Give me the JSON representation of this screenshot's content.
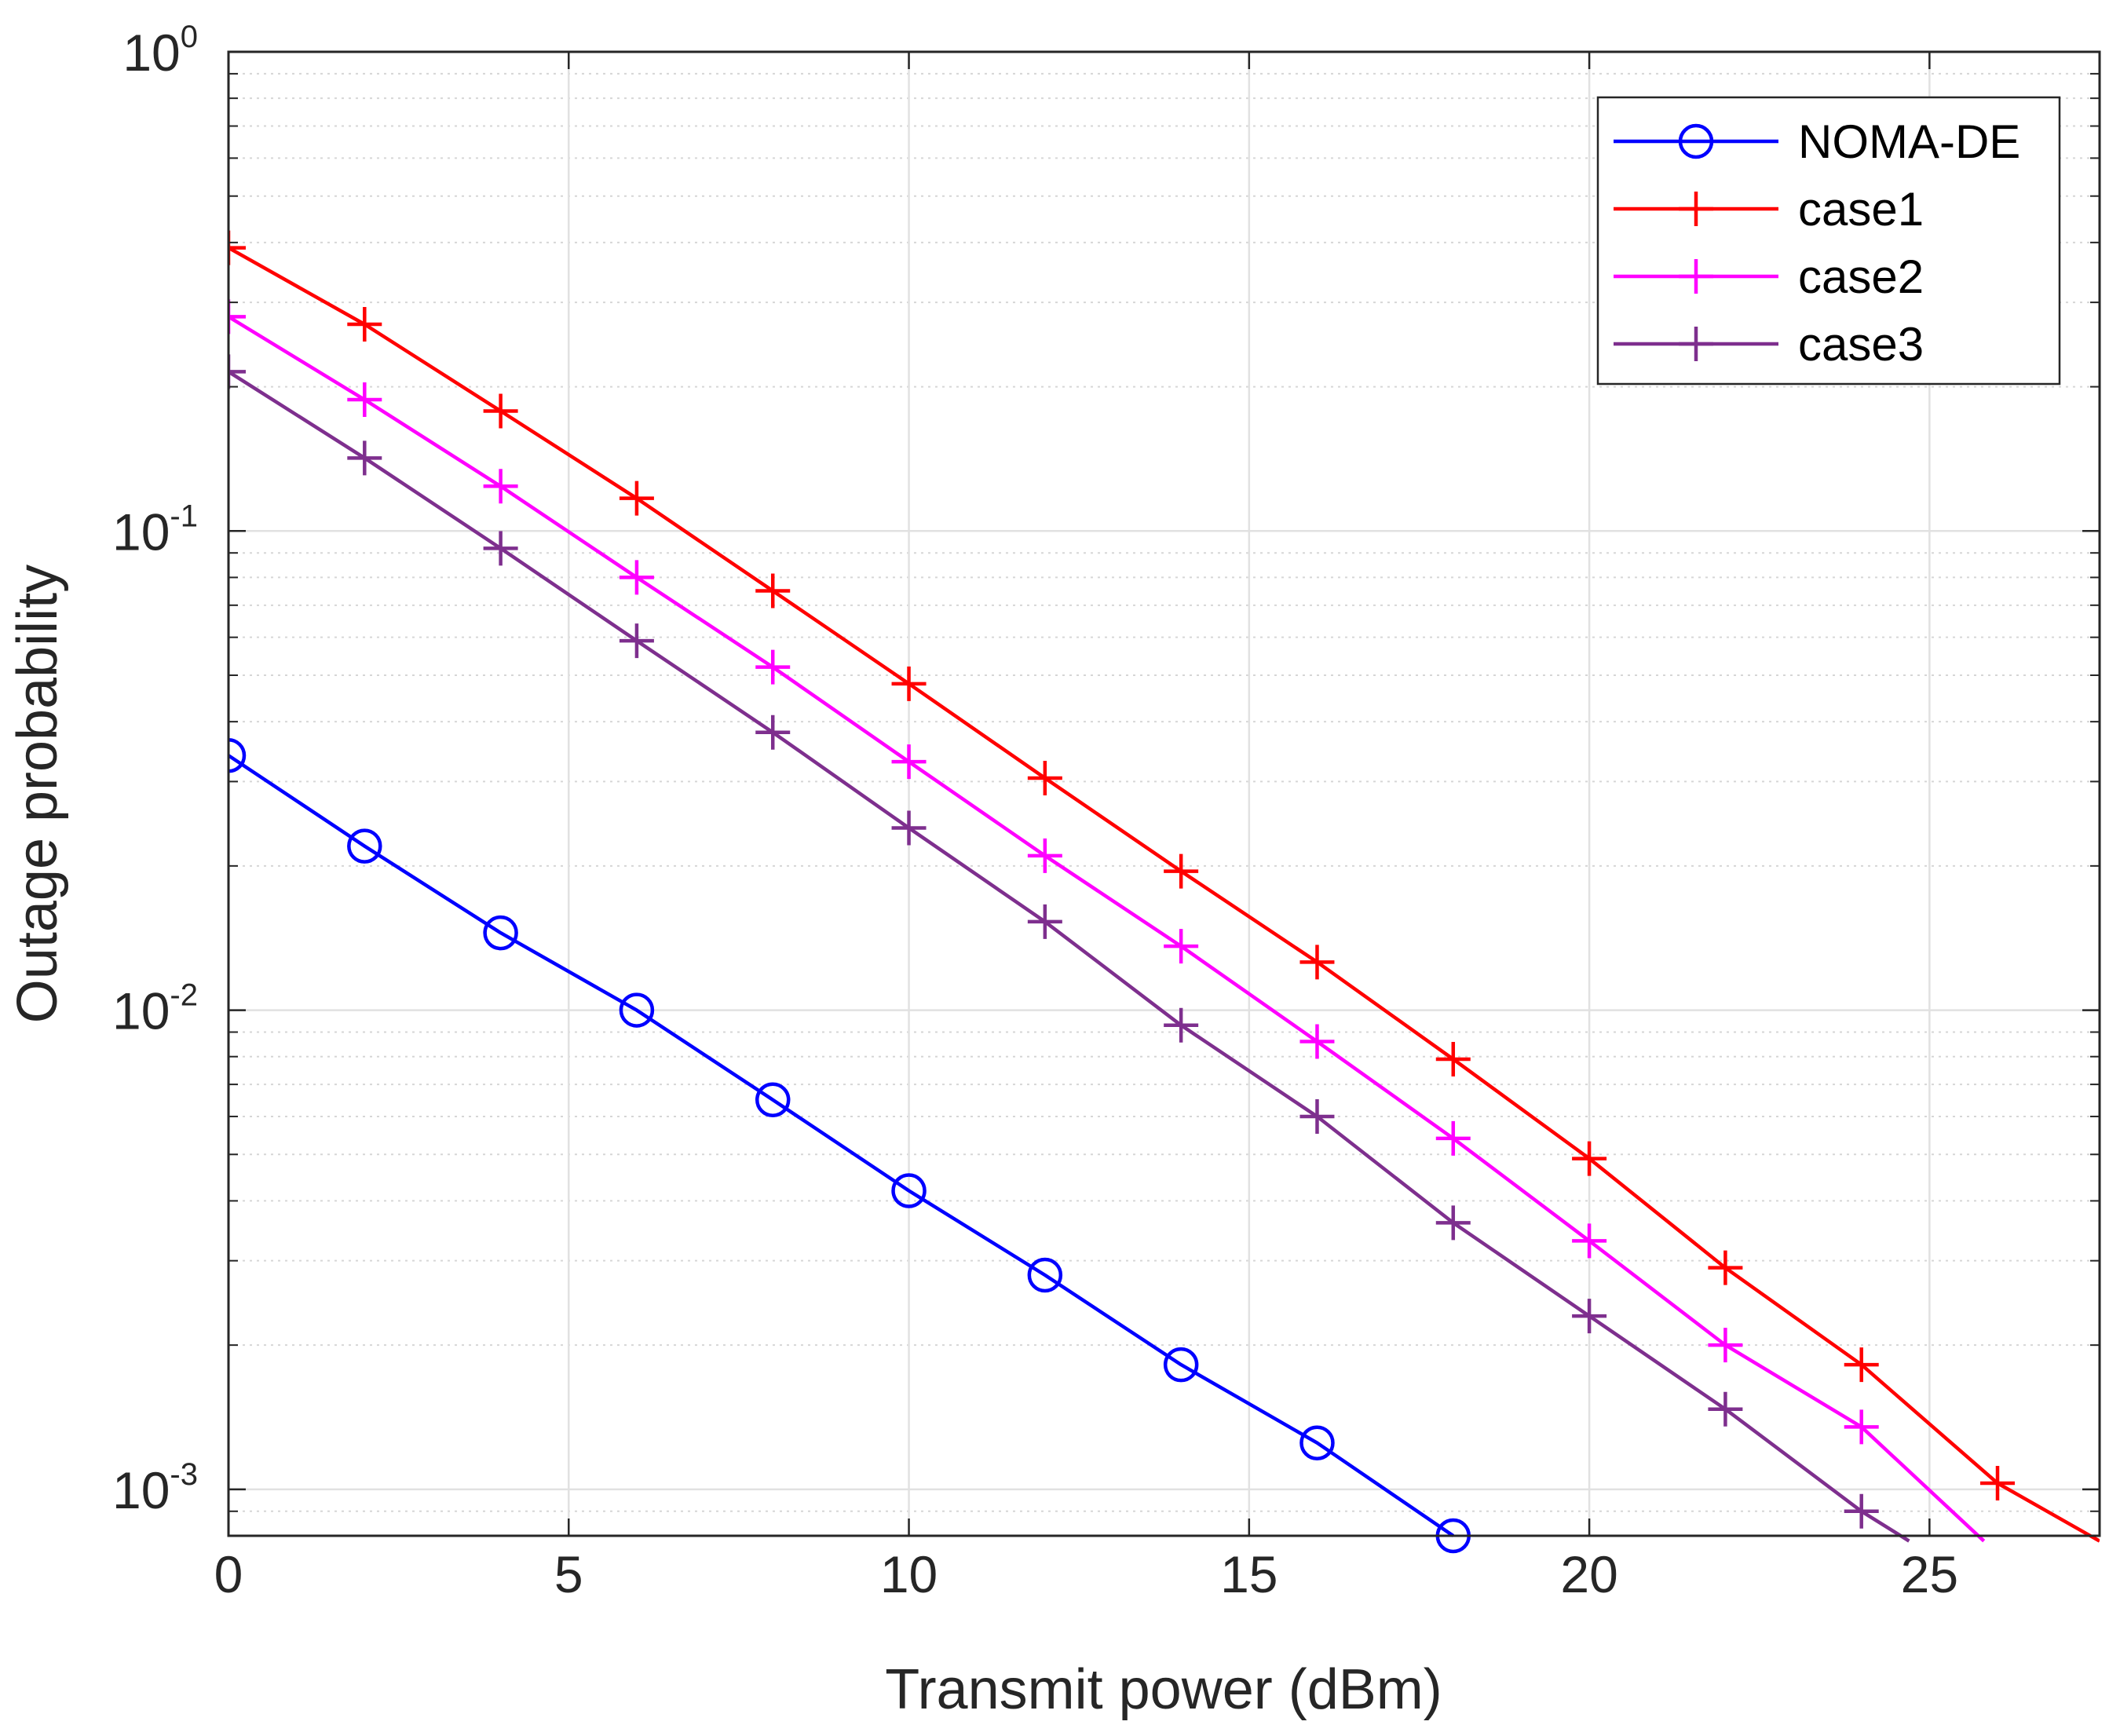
{
  "chart_data": {
    "type": "line",
    "title": "",
    "xlabel": "Transmit power (dBm)",
    "ylabel": "Outage probability",
    "xlim": [
      0,
      27.5
    ],
    "ylim": [
      0.0008,
      1
    ],
    "yscale": "log",
    "grid": true,
    "legend_position": "top-right",
    "x_ticks": [
      0,
      5,
      10,
      15,
      20,
      25
    ],
    "y_ticks": [
      {
        "value": 1,
        "base": "10",
        "exp": "0"
      },
      {
        "value": 0.1,
        "base": "10",
        "exp": "-1"
      },
      {
        "value": 0.01,
        "base": "10",
        "exp": "-2"
      },
      {
        "value": 0.001,
        "base": "10",
        "exp": "-3"
      }
    ],
    "series": [
      {
        "name": "NOMA-DE",
        "color": "#0000ff",
        "marker": "circle",
        "x": [
          0,
          2,
          4,
          6,
          8,
          10,
          12,
          14,
          16,
          18
        ],
        "values": [
          0.034,
          0.022,
          0.0145,
          0.01,
          0.0065,
          0.0042,
          0.0028,
          0.00182,
          0.00125,
          0.0008
        ]
      },
      {
        "name": "case1",
        "color": "#ff0000",
        "marker": "plus",
        "x": [
          0,
          2,
          4,
          6,
          8,
          10,
          12,
          14,
          16,
          18,
          20,
          22,
          24,
          26,
          27.5
        ],
        "values": [
          0.39,
          0.27,
          0.178,
          0.117,
          0.075,
          0.048,
          0.0305,
          0.0195,
          0.0126,
          0.0079,
          0.0049,
          0.0029,
          0.00182,
          0.00103,
          0.00078
        ]
      },
      {
        "name": "case2",
        "color": "#ff00ff",
        "marker": "plus",
        "x": [
          0,
          2,
          4,
          6,
          8,
          10,
          12,
          14,
          16,
          18,
          20,
          22,
          24,
          25.8
        ],
        "values": [
          0.28,
          0.188,
          0.124,
          0.08,
          0.052,
          0.033,
          0.021,
          0.0136,
          0.0086,
          0.0054,
          0.0033,
          0.002,
          0.00135,
          0.00078
        ]
      },
      {
        "name": "case3",
        "color": "#7e2f8e",
        "marker": "plus",
        "x": [
          0,
          2,
          4,
          6,
          8,
          10,
          12,
          14,
          16,
          18,
          20,
          22,
          24,
          24.7
        ],
        "values": [
          0.215,
          0.142,
          0.092,
          0.059,
          0.038,
          0.024,
          0.0153,
          0.0093,
          0.006,
          0.0036,
          0.0023,
          0.00147,
          0.0009,
          0.00078
        ]
      }
    ]
  }
}
